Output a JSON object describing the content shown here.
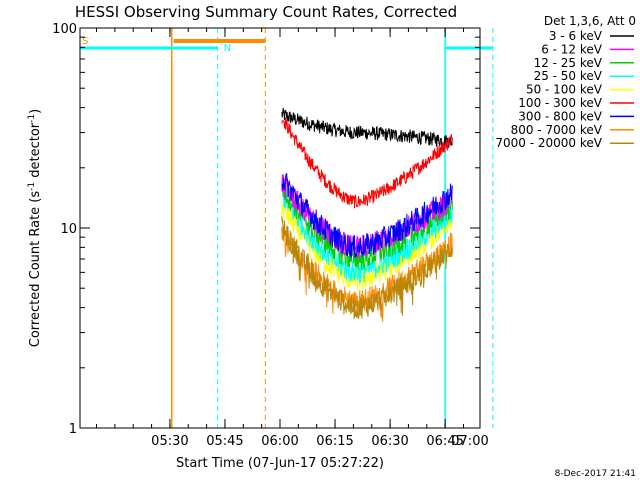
{
  "chart_data": {
    "type": "line",
    "title": "HESSI Observing Summary Count Rates, Corrected",
    "xlabel": "Start Time (07-Jun-17 05:27:22)",
    "ylabel_main": "Corrected Count Rate (s",
    "ylabel_sup1": "-1",
    "ylabel_mid": " detector",
    "ylabel_sup2": "-1",
    "ylabel_end": ")",
    "y_scale": "log",
    "ylim": [
      1,
      100
    ],
    "y_ticks": [
      {
        "value": 1,
        "label": "1"
      },
      {
        "value": 10,
        "label": "10"
      },
      {
        "value": 100,
        "label": "100"
      }
    ],
    "xlim_minutes": [
      5.5,
      114.5
    ],
    "x_ticks": [
      {
        "minute": 30,
        "label": "05:30"
      },
      {
        "minute": 45,
        "label": "05:45"
      },
      {
        "minute": 60,
        "label": "06:00"
      },
      {
        "minute": 75,
        "label": "06:15"
      },
      {
        "minute": 90,
        "label": "06:30"
      },
      {
        "minute": 105,
        "label": "06:45"
      },
      {
        "minute": 120,
        "label": "07:00"
      }
    ],
    "legend_title": "Det 1,3,6, Att 0",
    "legend_position": "right",
    "series": [
      {
        "name": "3 - 6 keV",
        "color": "#000000",
        "start": 37,
        "min": 30,
        "end": 27
      },
      {
        "name": "6 - 12 keV",
        "color": "#ff00ff",
        "start": 17,
        "min": 8,
        "end": 14
      },
      {
        "name": "12 - 25 keV",
        "color": "#00cc00",
        "start": 16,
        "min": 7,
        "end": 13
      },
      {
        "name": "25 - 50 keV",
        "color": "#00ffff",
        "start": 15,
        "min": 6,
        "end": 12
      },
      {
        "name": "50 - 100 keV",
        "color": "#ffff00",
        "start": 13,
        "min": 5.5,
        "end": 11
      },
      {
        "name": "100 - 300 keV",
        "color": "#ff0000",
        "start": 36,
        "min": 13.5,
        "end": 28
      },
      {
        "name": "300 - 800 keV",
        "color": "#0000ff",
        "start": 18,
        "min": 8,
        "end": 15
      },
      {
        "name": "800 - 7000 keV",
        "color": "#ff8c00",
        "start": 10,
        "min": 4.3,
        "end": 8.5
      },
      {
        "name": "7000 - 20000 keV",
        "color": "#b8860b",
        "start": 10,
        "min": 4,
        "end": 8
      }
    ],
    "data_window_minutes": [
      60.5,
      107
    ],
    "minimum_at_minute": 81,
    "flags": {
      "saa_label": "S",
      "night_label": "N",
      "saa_color": "#ff8c00",
      "night_color": "#00ffff",
      "saa_interval": [
        31,
        56
      ],
      "night_intervals": [
        [
          5.5,
          43
        ],
        [
          105,
          118
        ]
      ],
      "solid_lines": [
        {
          "minute": 30.5,
          "color": "#ff8c00"
        },
        {
          "minute": 105,
          "color": "#00ffff"
        }
      ],
      "dashed_lines": [
        {
          "minute": 43,
          "color": "#00ffff"
        },
        {
          "minute": 56,
          "color": "#ff8c00"
        },
        {
          "minute": 118,
          "color": "#00ffff"
        }
      ]
    }
  },
  "footer_timestamp": "8-Dec-2017 21:41"
}
